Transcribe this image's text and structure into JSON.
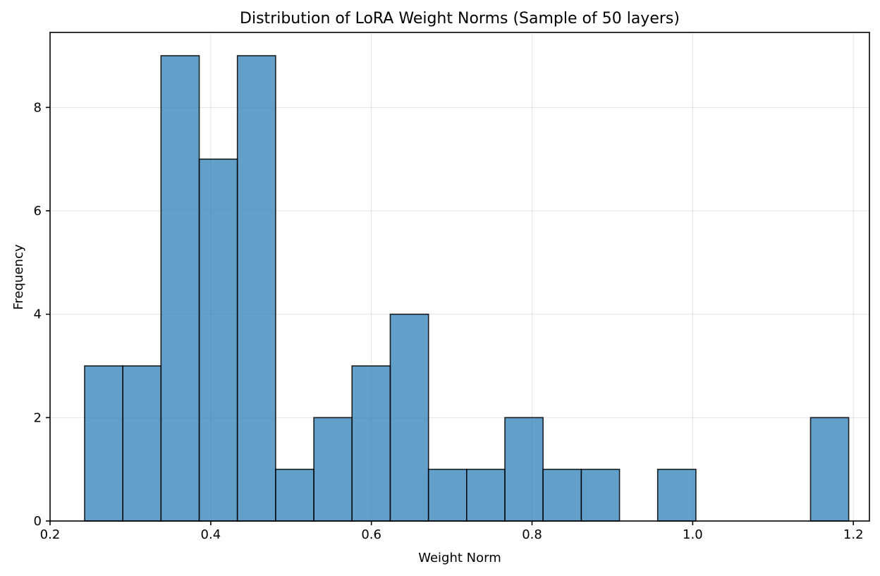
{
  "chart_data": {
    "type": "bar",
    "subtype": "histogram",
    "title": "Distribution of LoRA Weight Norms (Sample of 50 layers)",
    "xlabel": "Weight Norm",
    "ylabel": "Frequency",
    "xlim": [
      0.2,
      1.22
    ],
    "ylim": [
      0,
      9.45
    ],
    "xticks": [
      0.2,
      0.4,
      0.6,
      0.8,
      1.0,
      1.2
    ],
    "xtick_labels": [
      "0.2",
      "0.4",
      "0.6",
      "0.8",
      "1.0",
      "1.2"
    ],
    "yticks": [
      0,
      2,
      4,
      6,
      8
    ],
    "ytick_labels": [
      "0",
      "2",
      "4",
      "6",
      "8"
    ],
    "bin_edges": [
      0.243,
      0.2906,
      0.3381,
      0.3857,
      0.4332,
      0.4808,
      0.5284,
      0.5759,
      0.6235,
      0.6711,
      0.7186,
      0.7662,
      0.8137,
      0.8613,
      0.9089,
      0.9564,
      1.004,
      1.0515,
      1.0991,
      1.1467,
      1.1942
    ],
    "counts": [
      3,
      3,
      9,
      7,
      9,
      1,
      2,
      3,
      4,
      1,
      1,
      2,
      1,
      1,
      0,
      1,
      0,
      0,
      0,
      2
    ],
    "grid": true,
    "color": "#1f77b4"
  }
}
